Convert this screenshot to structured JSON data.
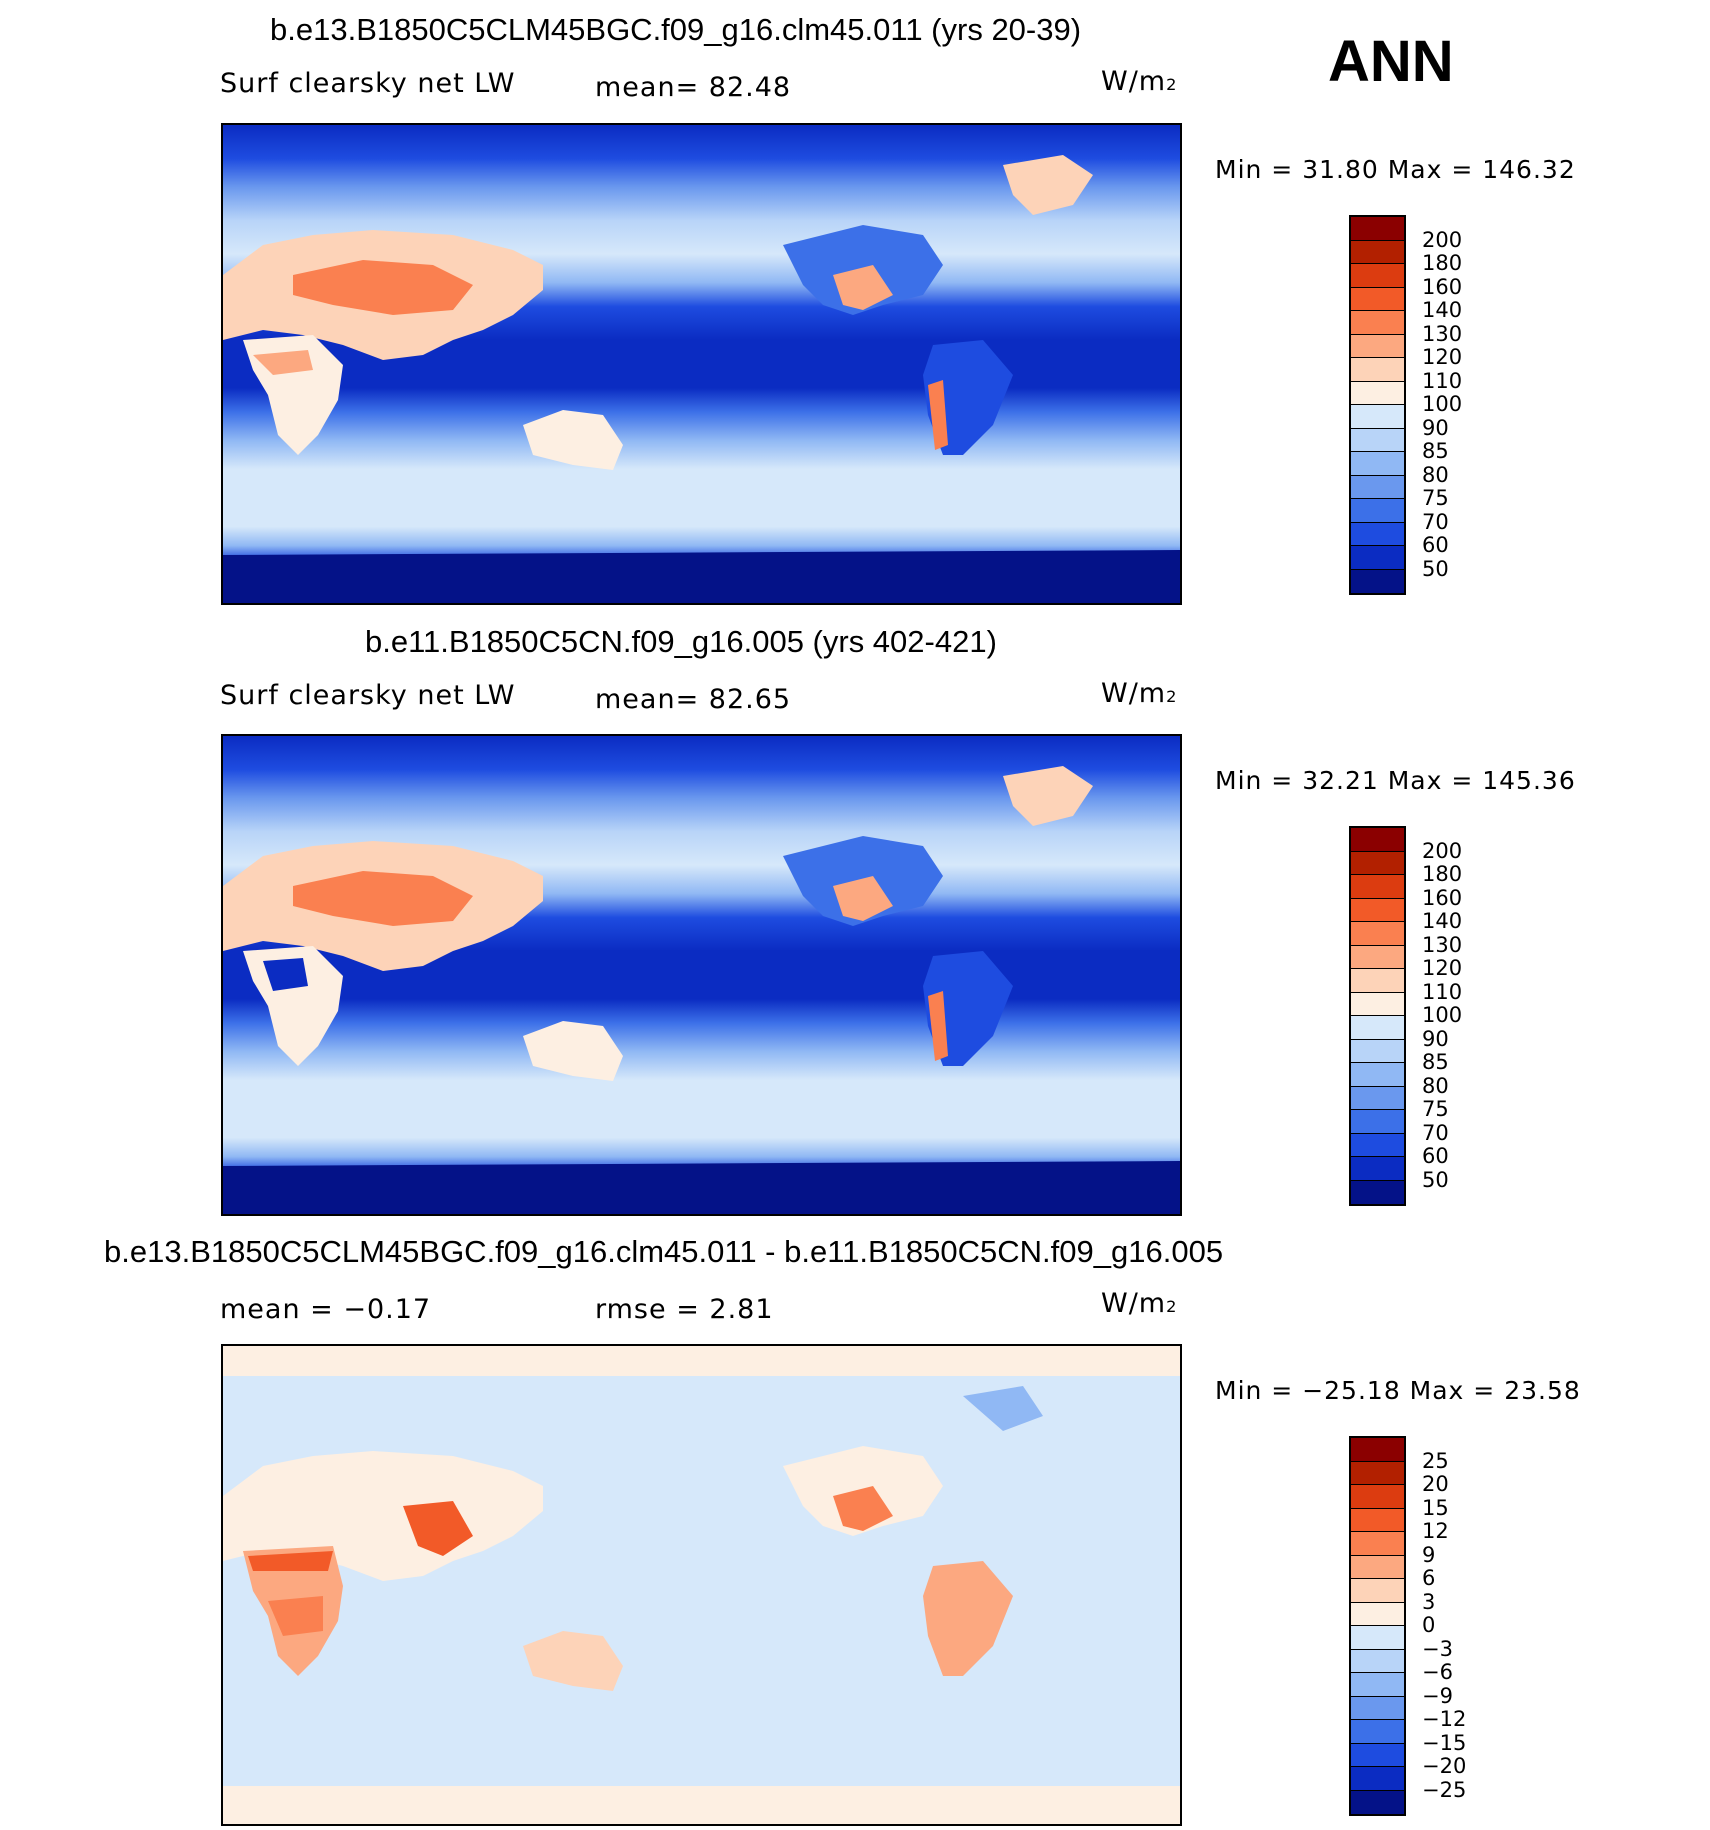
{
  "season": "ANN",
  "panels": [
    {
      "title": "b.e13.B1850C5CLM45BGC.f09_g16.clm45.011 (yrs 20-39)",
      "left_label": "Surf clearsky net LW",
      "center_label": "mean=   82.48",
      "units_base": "W/m",
      "units_exp": "2",
      "minmax": "Min =   31.80  Max  =  146.32",
      "colorbar": {
        "labels": [
          "200",
          "180",
          "160",
          "140",
          "130",
          "120",
          "110",
          "100",
          "90",
          "85",
          "80",
          "75",
          "70",
          "60",
          "50"
        ],
        "colors": [
          "#8b0000",
          "#b22000",
          "#dc3c10",
          "#f25a28",
          "#fa8050",
          "#fca880",
          "#fdd3b8",
          "#fdefe2",
          "#d6e8fa",
          "#b8d4f8",
          "#90b8f4",
          "#6a98ee",
          "#3c70e8",
          "#1e4ce0",
          "#0b2cc2",
          "#041288"
        ]
      }
    },
    {
      "title": "b.e11.B1850C5CN.f09_g16.005 (yrs 402-421)",
      "left_label": "Surf clearsky net LW",
      "center_label": "mean=   82.65",
      "units_base": "W/m",
      "units_exp": "2",
      "minmax": "Min =   32.21  Max  =  145.36",
      "colorbar": {
        "labels": [
          "200",
          "180",
          "160",
          "140",
          "130",
          "120",
          "110",
          "100",
          "90",
          "85",
          "80",
          "75",
          "70",
          "60",
          "50"
        ],
        "colors": [
          "#8b0000",
          "#b22000",
          "#dc3c10",
          "#f25a28",
          "#fa8050",
          "#fca880",
          "#fdd3b8",
          "#fdefe2",
          "#d6e8fa",
          "#b8d4f8",
          "#90b8f4",
          "#6a98ee",
          "#3c70e8",
          "#1e4ce0",
          "#0b2cc2",
          "#041288"
        ]
      }
    },
    {
      "title": "b.e13.B1850C5CLM45BGC.f09_g16.clm45.011 - b.e11.B1850C5CN.f09_g16.005",
      "left_label": "mean =   −0.17",
      "center_label": "rmse =     2.81",
      "units_base": "W/m",
      "units_exp": "2",
      "minmax": "Min = −25.18  Max =   23.58",
      "colorbar": {
        "labels": [
          "25",
          "20",
          "15",
          "12",
          "9",
          "6",
          "3",
          "0",
          "−3",
          "−6",
          "−9",
          "−12",
          "−15",
          "−20",
          "−25"
        ],
        "colors": [
          "#8b0000",
          "#b22000",
          "#dc3c10",
          "#f25a28",
          "#fa8050",
          "#fca880",
          "#fdd3b8",
          "#fdefe2",
          "#d6e8fa",
          "#b8d4f8",
          "#90b8f4",
          "#6a98ee",
          "#3c70e8",
          "#1e4ce0",
          "#0b2cc2",
          "#041288"
        ]
      }
    }
  ]
}
